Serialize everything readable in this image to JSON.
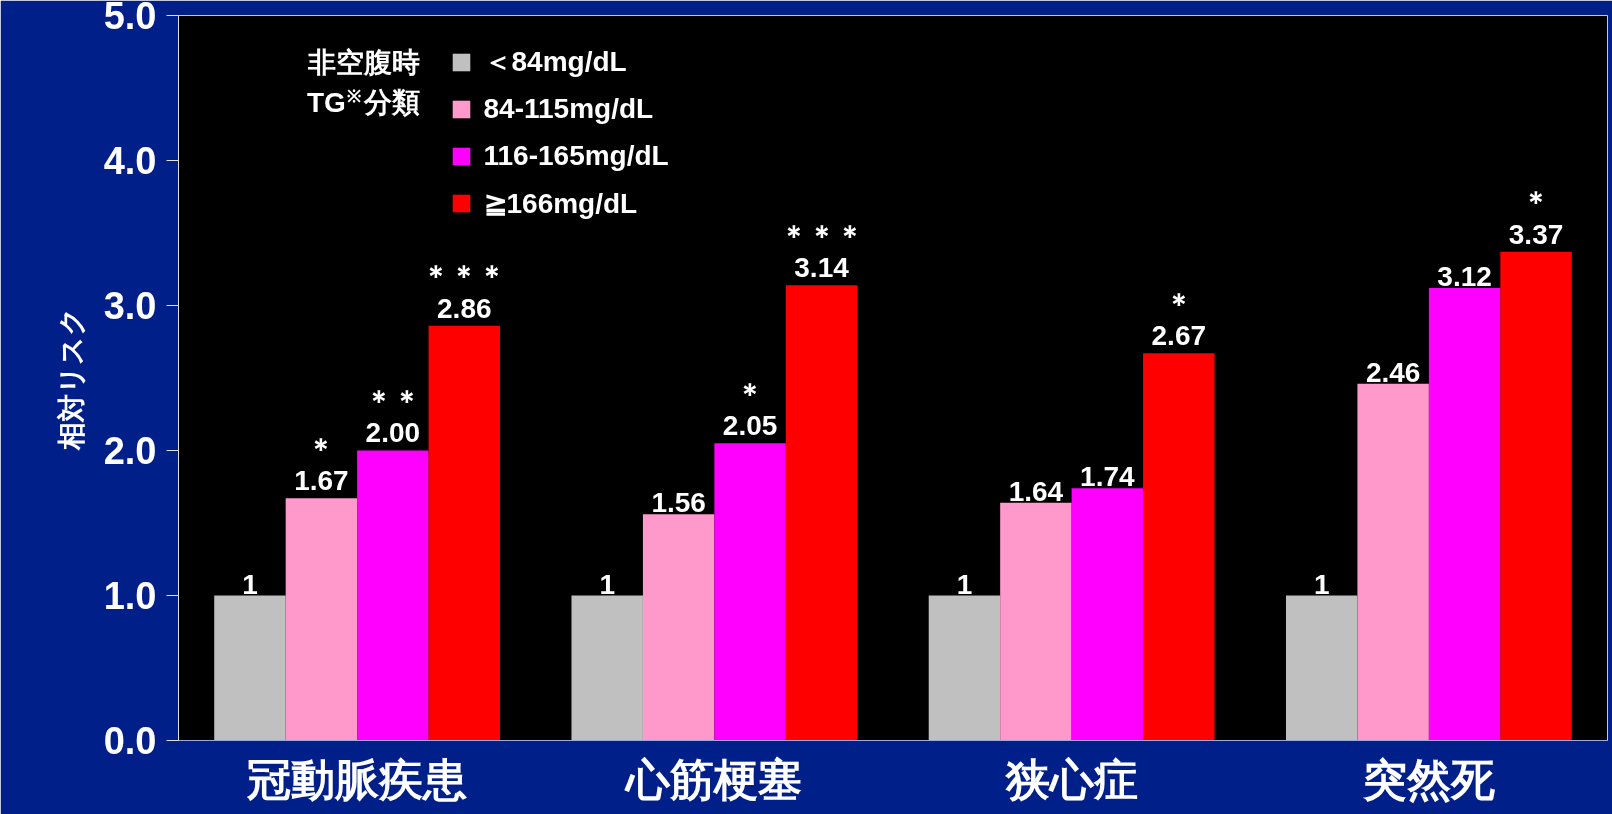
{
  "chart_data": {
    "type": "bar",
    "ylabel": "相対リスク",
    "legend_title": "非空腹時\nTG$^{※}$分類",
    "legend": "top left",
    "categories": [
      "冠動脈疾患",
      "心筋梗塞",
      "狭心症",
      "突然死"
    ],
    "ylim": [
      0,
      5
    ],
    "yticks": [
      {
        "value": 0,
        "label": "0.0"
      },
      {
        "value": 1,
        "label": "1.0"
      },
      {
        "value": 2,
        "label": "2.0"
      },
      {
        "value": 3,
        "label": "3.0"
      },
      {
        "value": 4,
        "label": "4.0"
      },
      {
        "value": 5,
        "label": "5.0"
      }
    ],
    "series": [
      {
        "name": "＜84mg/dL",
        "color": "#c0c0c0",
        "values": [
          1,
          1,
          1,
          1
        ],
        "value_labels": [
          "1",
          "1",
          "1",
          "1"
        ]
      },
      {
        "name": "84-115mg/dL",
        "color": "#ff99cc",
        "values": [
          1.67,
          1.56,
          1.64,
          2.46
        ],
        "value_labels": [
          "＊\n1.67",
          "1.56",
          "1.64",
          "2.46"
        ]
      },
      {
        "name": "116-165mg/dL",
        "color": "#ff00ff",
        "values": [
          2.0,
          2.05,
          1.74,
          3.12
        ],
        "value_labels": [
          "＊＊\n2.00",
          "＊\n2.05",
          "1.74",
          "3.12"
        ]
      },
      {
        "name": "≧166mg/dL",
        "color": "#ff0000",
        "values": [
          2.86,
          3.14,
          2.67,
          3.37
        ],
        "value_labels": [
          "＊＊＊\n2.86",
          "＊＊＊\n3.14",
          "＊\n2.67",
          "＊\n3.37"
        ]
      }
    ]
  }
}
